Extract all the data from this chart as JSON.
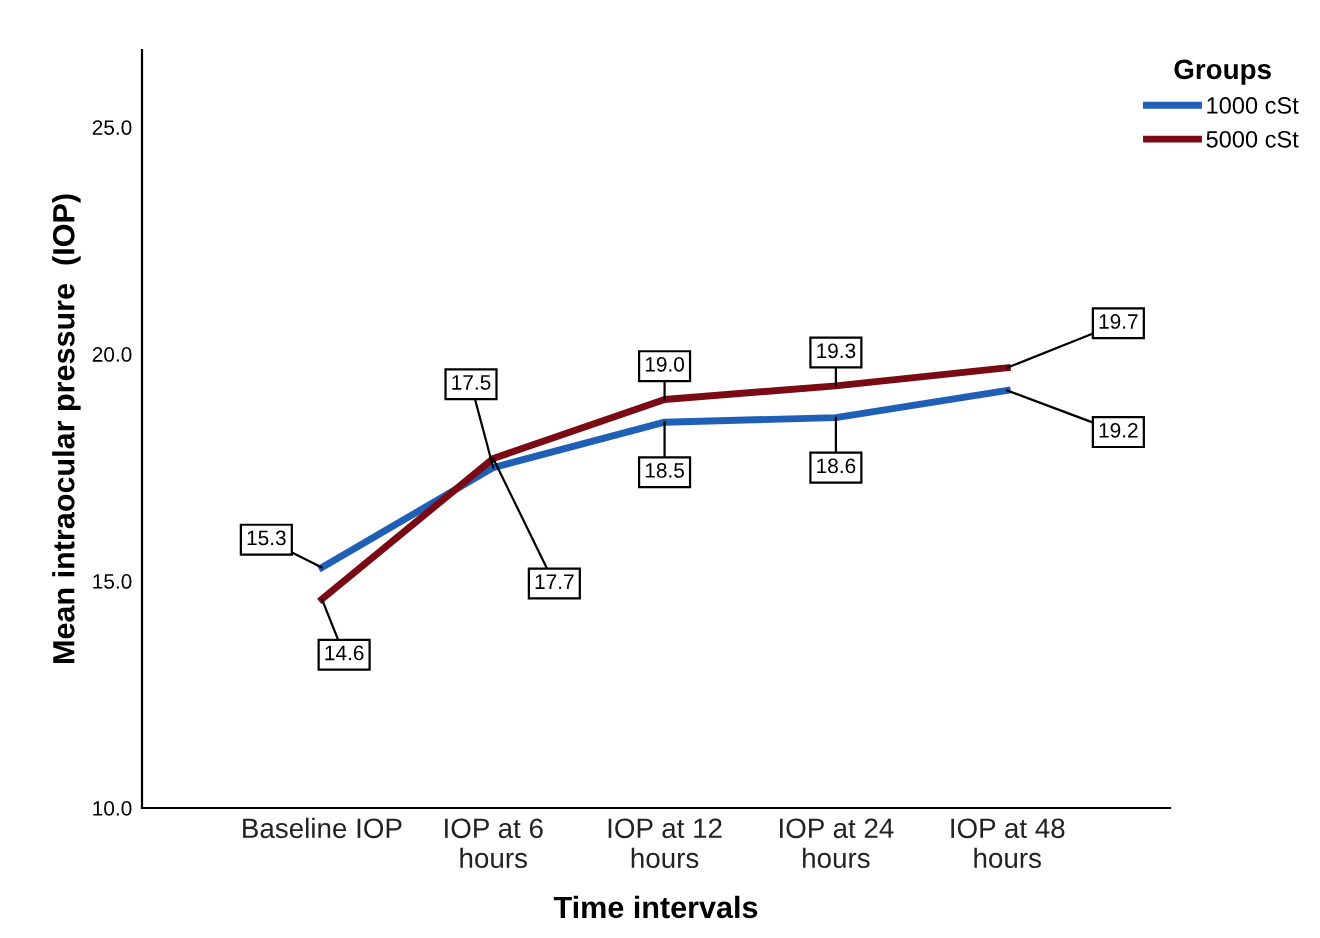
{
  "chart_data": {
    "type": "line",
    "xlabel": "Time intervals",
    "ylabel": "Mean intraocular pressure  (IOP)",
    "legend_title": "Groups",
    "legend": "top right",
    "categories": [
      "Baseline IOP",
      "IOP at 6\nhours",
      "IOP at 12\nhours",
      "IOP at 24\nhours",
      "IOP at 48\nhours"
    ],
    "series": [
      {
        "name": "1000 cSt",
        "color": "#1f5fb5",
        "values": [
          15.3,
          17.5,
          18.5,
          18.6,
          19.2
        ],
        "value_labels": [
          "15.3",
          "17.5",
          "18.5",
          "18.6",
          "19.2"
        ]
      },
      {
        "name": "5000 cSt",
        "color": "#7a0a14",
        "values": [
          14.6,
          17.7,
          19.0,
          19.3,
          19.7
        ],
        "value_labels": [
          "14.6",
          "17.7",
          "19.0",
          "19.3",
          "19.7"
        ]
      }
    ],
    "ylim": [
      10,
      26.7
    ],
    "yticks": [
      {
        "value": 10,
        "label": "10.0"
      },
      {
        "value": 15,
        "label": "15.0"
      },
      {
        "value": 20,
        "label": "20.0"
      },
      {
        "value": 25,
        "label": "25.0"
      }
    ],
    "grid": false,
    "marker": "none",
    "line_style": "solid"
  }
}
